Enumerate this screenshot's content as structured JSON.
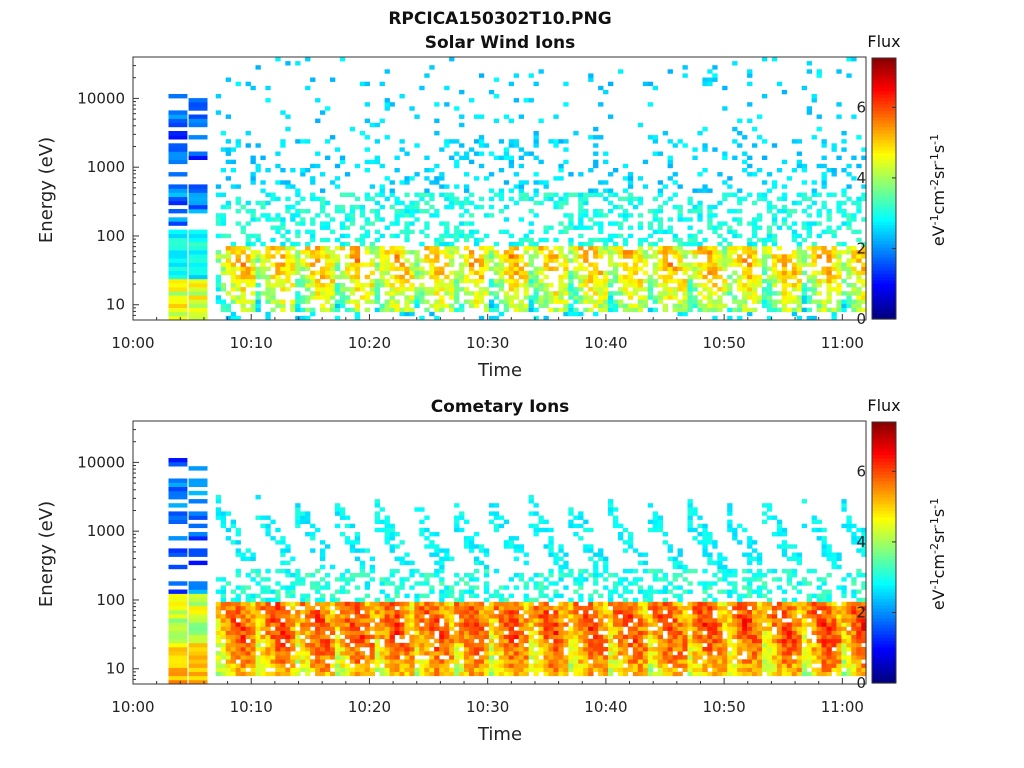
{
  "figure_title": "RPCICA150302T10.PNG",
  "chart_data": [
    {
      "type": "heatmap",
      "title": "Solar Wind Ions",
      "xlabel": "Time",
      "ylabel": "Energy (eV)",
      "x_tick_labels": [
        "10:00",
        "10:10",
        "10:20",
        "10:30",
        "10:40",
        "10:50",
        "11:00"
      ],
      "xlim_minutes": [
        0,
        62
      ],
      "y_scale": "log",
      "ylim": [
        6,
        40000
      ],
      "y_tick_labels": [
        "10",
        "100",
        "1000",
        "10000"
      ],
      "y_tick_values": [
        10,
        100,
        1000,
        10000
      ],
      "colorbar_label": "Flux",
      "colorbar_units": "eV-1cm-2sr-1s-1",
      "colorbar_range": [
        0,
        7.4
      ],
      "colorbar_tick_labels": [
        "0",
        "2",
        "4",
        "6"
      ],
      "colorbar_tick_values": [
        0,
        2,
        4,
        6
      ],
      "colormap": "jet",
      "features": {
        "sweep_period_min": 3.3,
        "peak_energy_eV": 22,
        "peak_flux": 5.4,
        "scattered_high_energy_flux": 2.6
      }
    },
    {
      "type": "heatmap",
      "title": "Cometary Ions",
      "xlabel": "Time",
      "ylabel": "Energy (eV)",
      "x_tick_labels": [
        "10:00",
        "10:10",
        "10:20",
        "10:30",
        "10:40",
        "10:50",
        "11:00"
      ],
      "xlim_minutes": [
        0,
        62
      ],
      "y_scale": "log",
      "ylim": [
        6,
        40000
      ],
      "y_tick_labels": [
        "10",
        "100",
        "1000",
        "10000"
      ],
      "y_tick_values": [
        10,
        100,
        1000,
        10000
      ],
      "colorbar_label": "Flux",
      "colorbar_units": "eV-1cm-2sr-1s-1",
      "colorbar_range": [
        0,
        7.4
      ],
      "colorbar_tick_labels": [
        "0",
        "2",
        "4",
        "6"
      ],
      "colorbar_tick_values": [
        0,
        2,
        4,
        6
      ],
      "colormap": "jet",
      "features": {
        "sweep_period_min": 3.3,
        "peak_energy_eV": 20,
        "peak_flux": 6.2,
        "scattered_high_energy_flux": 2.5
      }
    }
  ]
}
